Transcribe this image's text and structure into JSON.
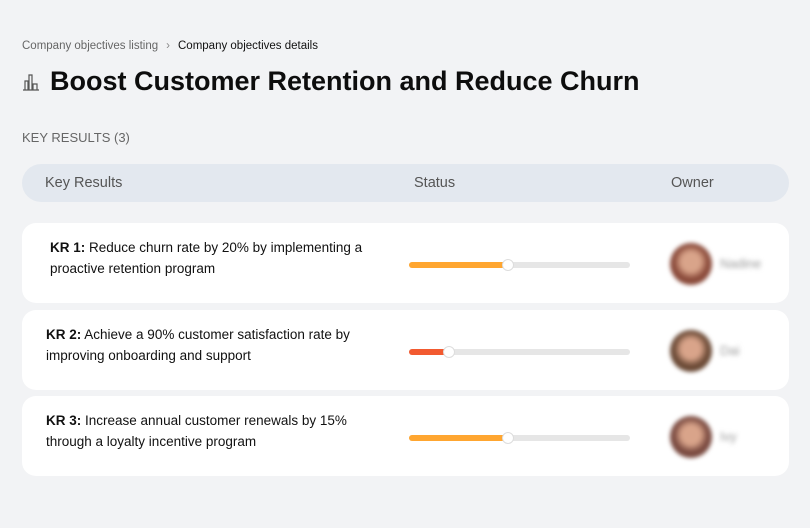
{
  "breadcrumb": {
    "parent": "Company objectives listing",
    "current": "Company objectives details"
  },
  "page": {
    "title": "Boost Customer Retention and Reduce Churn",
    "icon": "building-chart-icon"
  },
  "key_results_count": "KEY RESULTS (3)",
  "table": {
    "headers": [
      "Key Results",
      "Status",
      "Owner"
    ]
  },
  "rows": [
    {
      "label": "KR 1:",
      "text": " Reduce churn rate by 20% by implementing a proactive retention program",
      "progress": 45,
      "color": "#ffa630",
      "owner": "Nadine",
      "avatar": "#8a4a3a"
    },
    {
      "label": "KR 2:",
      "text": " Achieve a 90% customer satisfaction rate by improving onboarding and support",
      "progress": 18,
      "color": "#f25a30",
      "owner": "Dai",
      "avatar": "#6b4a36"
    },
    {
      "label": "KR 3:",
      "text": " Increase annual customer renewals by 15% through a loyalty incentive program",
      "progress": 45,
      "color": "#ffa630",
      "owner": "Ivy",
      "avatar": "#7a4a40"
    }
  ]
}
